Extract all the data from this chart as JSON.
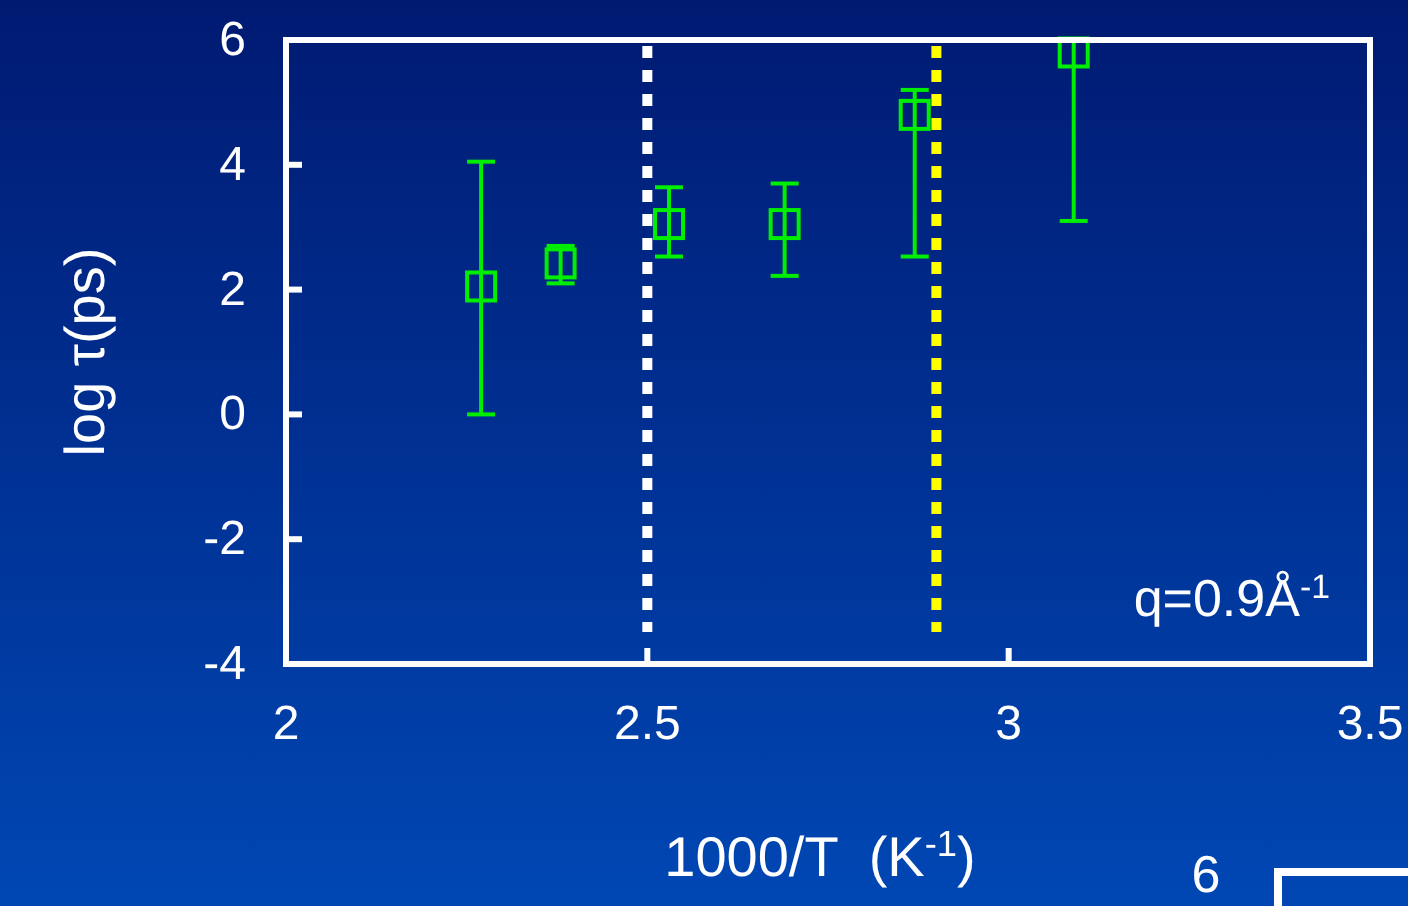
{
  "chart_data": {
    "type": "scatter",
    "xlabel": "1000/T  (K$^{-1}$)",
    "ylabel": "log τ(ps)",
    "x": [
      2.27,
      2.38,
      2.53,
      2.69,
      2.87,
      3.09
    ],
    "series": [
      {
        "color": "#00ee00",
        "values": [
          2.05,
          2.42,
          3.05,
          3.05,
          4.8,
          5.8
        ],
        "errors": [
          [
            0,
            4.05
          ],
          [
            2.1,
            2.7
          ],
          [
            2.53,
            3.64
          ],
          [
            2.22,
            3.7
          ],
          [
            2.53,
            5.2
          ],
          [
            3.1,
            6.0
          ]
        ]
      }
    ],
    "marker": "square",
    "xlim": [
      2,
      3.5
    ],
    "xticks": [
      2,
      2.5,
      3,
      3.5
    ],
    "ylim": [
      -4,
      6
    ],
    "yticks": [
      -4,
      -2,
      0,
      2,
      4,
      6
    ],
    "grid": false,
    "ref_lines": [
      {
        "axis": "x",
        "value": 2.5,
        "color": "#ffffff",
        "line_style": "dotted"
      },
      {
        "axis": "x",
        "value": 2.9,
        "color": "#ffff00",
        "line_style": "dotted"
      }
    ],
    "annotations": [
      {
        "text": "q=0.9Å$^{-1}$"
      },
      {
        "text": "6"
      }
    ]
  }
}
